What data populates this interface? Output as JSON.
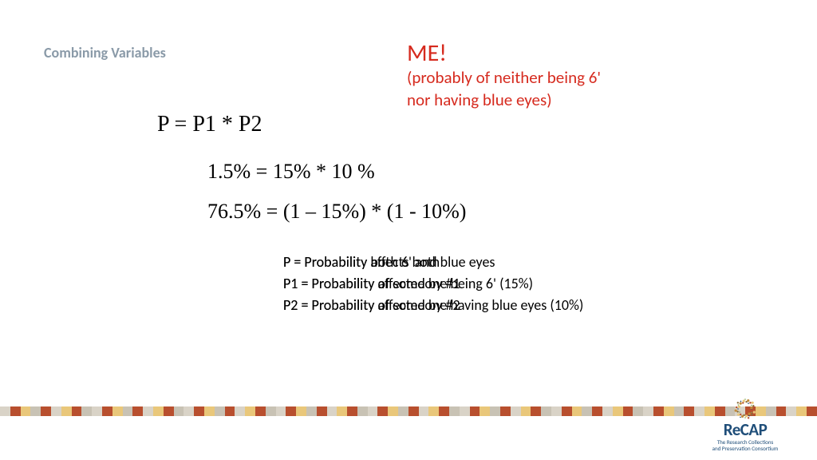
{
  "heading": "Combining Variables",
  "callout": {
    "title": "ME!",
    "line1": "(probably of neither being 6'",
    "line2": "nor having blue eyes)"
  },
  "formula_main": "P = P1 * P2",
  "formula_line1": "1.5% = 15% * 10 %",
  "formula_line2": "76.5% = (1 – 15%) * (1 - 10%)",
  "defs": {
    "p_a": "P = Probability affects both",
    "p_b": "P = Probability both 6' and blue eyes",
    "p1_a": "P1 = Probability affected by #1",
    "p1_b": "P1 = Probability of someone being 6' (15%)",
    "p2_a": "P2 = Probability affected by #2",
    "p2_b": "P2 = Probability of someone having blue eyes (10%)"
  },
  "stripe_colors": [
    "#d9d3c7",
    "#b84f2e",
    "#e9c77a",
    "#c8c2b4",
    "#b84f2e",
    "#d9d3c7",
    "#e9c77a",
    "#b84f2e",
    "#c8c2b4",
    "#d9d3c7",
    "#b84f2e",
    "#e9c77a",
    "#c8c2b4",
    "#b84f2e",
    "#d9d3c7",
    "#e9c77a",
    "#b84f2e",
    "#c8c2b4",
    "#d9d3c7",
    "#b84f2e",
    "#e9c77a",
    "#c8c2b4",
    "#b84f2e",
    "#d9d3c7",
    "#e9c77a",
    "#b84f2e",
    "#c8c2b4",
    "#d9d3c7",
    "#b84f2e",
    "#e9c77a",
    "#c8c2b4",
    "#b84f2e",
    "#d9d3c7",
    "#e9c77a",
    "#b84f2e",
    "#c8c2b4",
    "#d9d3c7",
    "#b84f2e",
    "#e9c77a",
    "#c8c2b4",
    "#b84f2e",
    "#d9d3c7",
    "#e9c77a",
    "#b84f2e",
    "#c8c2b4",
    "#d9d3c7",
    "#b84f2e",
    "#e9c77a",
    "#c8c2b4",
    "#b84f2e",
    "#d9d3c7",
    "#e9c77a",
    "#b84f2e",
    "#c8c2b4",
    "#d9d3c7",
    "#b84f2e",
    "#e9c77a",
    "#c8c2b4",
    "#b84f2e",
    "#d9d3c7",
    "#e9c77a",
    "#b84f2e",
    "#c8c2b4",
    "#d9d3c7",
    "#b84f2e",
    "#e9c77a",
    "#c8c2b4",
    "#b84f2e",
    "#d9d3c7",
    "#e9c77a",
    "#b84f2e",
    "#c8c2b4",
    "#d9d3c7",
    "#b84f2e",
    "#e9c77a",
    "#c8c2b4",
    "#b84f2e",
    "#d9d3c7",
    "#e9c77a",
    "#b84f2e"
  ],
  "logo": {
    "text": "ReCAP",
    "tag1": "The Research Collections",
    "tag2": "and Preservation Consortium",
    "burst_colors": [
      "#1f4e79",
      "#b84f2e",
      "#e9c77a",
      "#7da453",
      "#8a6d3b",
      "#c28c3a"
    ]
  }
}
